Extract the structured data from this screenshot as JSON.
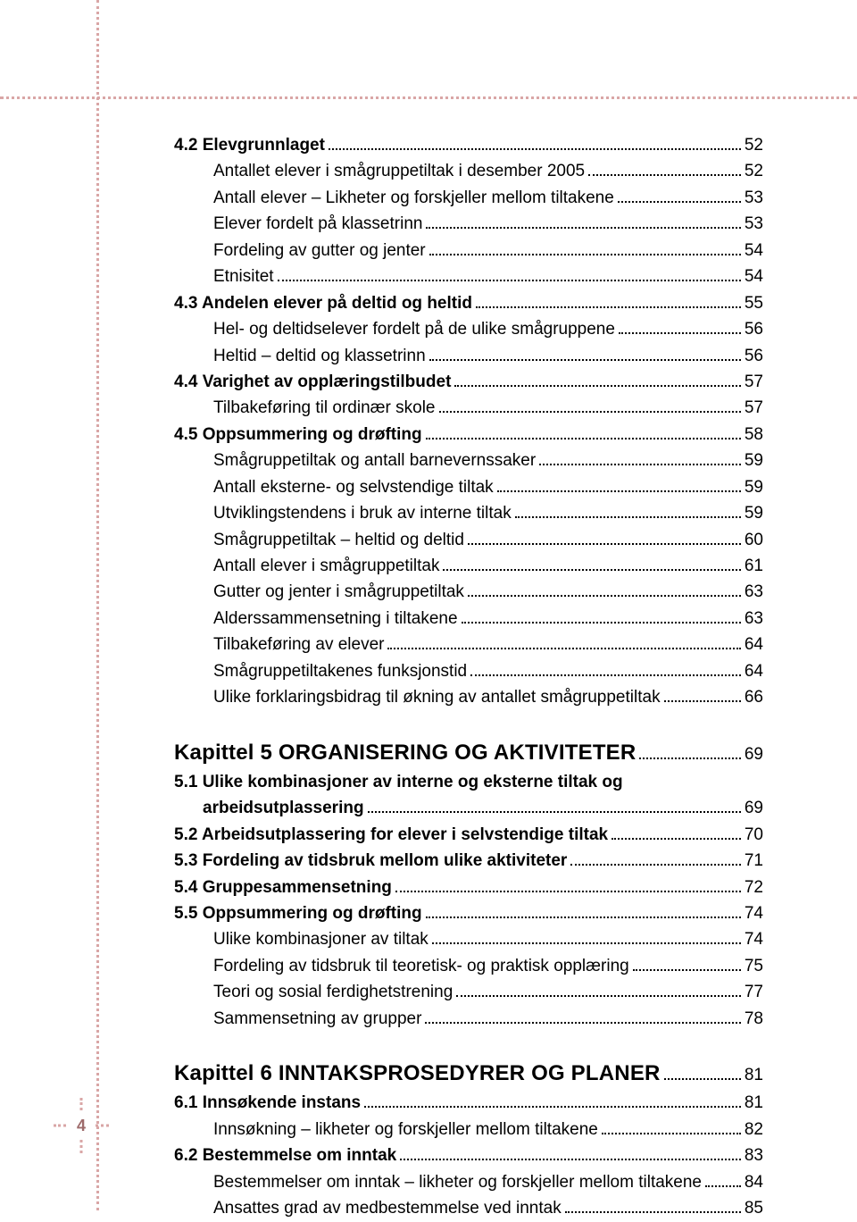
{
  "colors": {
    "dotted_border": "#d9a6a6",
    "text": "#000000",
    "page_number": "#9e6b6b",
    "background": "#ffffff"
  },
  "typography": {
    "base_family": "Helvetica/Arial",
    "section_bold_size_pt": 14,
    "sub_size_pt": 14,
    "chapter_size_pt": 18
  },
  "page_number": "4",
  "toc": [
    {
      "level": "section",
      "label": "4.2 Elevgrunnlaget",
      "page": "52"
    },
    {
      "level": "sub",
      "label": "Antallet elever i smågruppetiltak i desember 2005",
      "page": "52"
    },
    {
      "level": "sub",
      "label": "Antall elever – Likheter og forskjeller mellom tiltakene",
      "page": "53"
    },
    {
      "level": "sub",
      "label": "Elever fordelt på klassetrinn",
      "page": "53"
    },
    {
      "level": "sub",
      "label": "Fordeling av gutter og jenter",
      "page": "54"
    },
    {
      "level": "sub",
      "label": "Etnisitet",
      "page": "54"
    },
    {
      "level": "section",
      "label": "4.3 Andelen elever på deltid og heltid",
      "page": "55"
    },
    {
      "level": "sub",
      "label": "Hel- og deltidselever fordelt på de ulike smågruppene",
      "page": "56"
    },
    {
      "level": "sub",
      "label": "Heltid – deltid og klassetrinn",
      "page": "56"
    },
    {
      "level": "section",
      "label": "4.4 Varighet av opplæringstilbudet",
      "page": "57"
    },
    {
      "level": "sub",
      "label": "Tilbakeføring til ordinær skole",
      "page": "57"
    },
    {
      "level": "section",
      "label": "4.5 Oppsummering og drøfting",
      "page": "58"
    },
    {
      "level": "sub",
      "label": "Smågruppetiltak og antall barnevernssaker",
      "page": "59"
    },
    {
      "level": "sub",
      "label": "Antall eksterne- og selvstendige tiltak",
      "page": "59"
    },
    {
      "level": "sub",
      "label": "Utviklingstendens i bruk av interne tiltak",
      "page": "59"
    },
    {
      "level": "sub",
      "label": "Smågruppetiltak – heltid og deltid",
      "page": "60"
    },
    {
      "level": "sub",
      "label": "Antall elever i smågruppetiltak",
      "page": "61"
    },
    {
      "level": "sub",
      "label": "Gutter og jenter i smågruppetiltak",
      "page": "63"
    },
    {
      "level": "sub",
      "label": "Alderssammensetning i tiltakene",
      "page": "63"
    },
    {
      "level": "sub",
      "label": "Tilbakeføring av elever",
      "page": "64"
    },
    {
      "level": "sub",
      "label": "Smågruppetiltakenes funksjonstid",
      "page": "64"
    },
    {
      "level": "sub",
      "label": "Ulike forklaringsbidrag til økning av antallet smågruppetiltak",
      "page": "66"
    },
    {
      "level": "chapter",
      "label": "Kapittel 5  ORGANISERING OG AKTIVITETER",
      "page": "69"
    },
    {
      "level": "sec2",
      "label": "5.1 Ulike kombinasjoner av interne og eksterne tiltak og",
      "page": ""
    },
    {
      "level": "sec2-cont",
      "label": "arbeidsutplassering",
      "page": "69"
    },
    {
      "level": "sec2",
      "label": "5.2 Arbeidsutplassering for elever i selvstendige tiltak",
      "page": "70"
    },
    {
      "level": "sec2",
      "label": "5.3 Fordeling av tidsbruk mellom ulike aktiviteter",
      "page": "71"
    },
    {
      "level": "sec2",
      "label": "5.4 Gruppesammensetning",
      "page": "72"
    },
    {
      "level": "sec2",
      "label": "5.5 Oppsummering og drøfting",
      "page": "74"
    },
    {
      "level": "sub",
      "label": "Ulike kombinasjoner av tiltak",
      "page": "74"
    },
    {
      "level": "sub",
      "label": "Fordeling av tidsbruk til teoretisk- og praktisk opplæring",
      "page": "75"
    },
    {
      "level": "sub",
      "label": "Teori og sosial ferdighetstrening",
      "page": "77"
    },
    {
      "level": "sub",
      "label": "Sammensetning av grupper",
      "page": "78"
    },
    {
      "level": "chapter",
      "label": "Kapittel 6  INNTAKSPROSEDYRER OG PLANER",
      "page": "81"
    },
    {
      "level": "sec2",
      "label": "6.1 Innsøkende instans",
      "page": "81"
    },
    {
      "level": "sub",
      "label": "Innsøkning – likheter og forskjeller mellom tiltakene",
      "page": "82"
    },
    {
      "level": "sec2",
      "label": "6.2 Bestemmelse om inntak",
      "page": "83"
    },
    {
      "level": "sub",
      "label": "Bestemmelser om inntak – likheter og forskjeller mellom tiltakene",
      "page": "84"
    },
    {
      "level": "sub",
      "label": "Ansattes grad av medbestemmelse ved inntak",
      "page": "85"
    }
  ]
}
